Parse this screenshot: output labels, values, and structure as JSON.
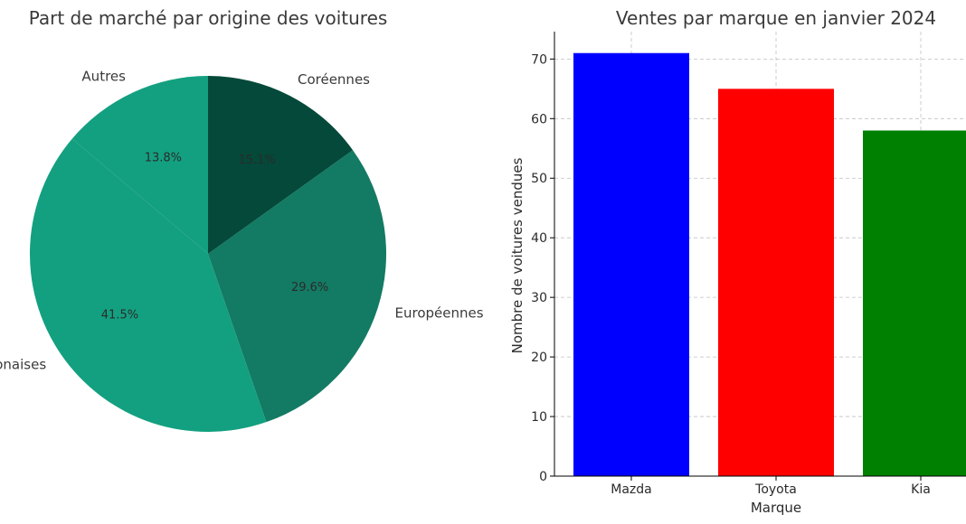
{
  "chart_data": [
    {
      "type": "pie",
      "title": "Part de marché par origine des voitures",
      "labels": [
        "Coréennes",
        "Européennes",
        "Japonaises",
        "Autres"
      ],
      "values": [
        15.1,
        29.6,
        41.5,
        13.8
      ],
      "percent_labels": [
        "15.1%",
        "29.6%",
        "41.5%",
        "13.8%"
      ],
      "colors": [
        "#04493a",
        "#137a63",
        "#13a080",
        "#13a080"
      ],
      "start_angle_deg": 90,
      "direction": "clockwise"
    },
    {
      "type": "bar",
      "title": "Ventes par marque en janvier 2024",
      "xlabel": "Marque",
      "ylabel": "Nombre de voitures vendues",
      "categories": [
        "Mazda",
        "Toyota",
        "Kia"
      ],
      "values": [
        71,
        65,
        58
      ],
      "colors": [
        "#0000ff",
        "#ff0000",
        "#008000"
      ],
      "ylim": [
        0,
        74.6
      ],
      "yticks": [
        0,
        10,
        20,
        30,
        40,
        50,
        60,
        70
      ],
      "grid": true
    }
  ]
}
